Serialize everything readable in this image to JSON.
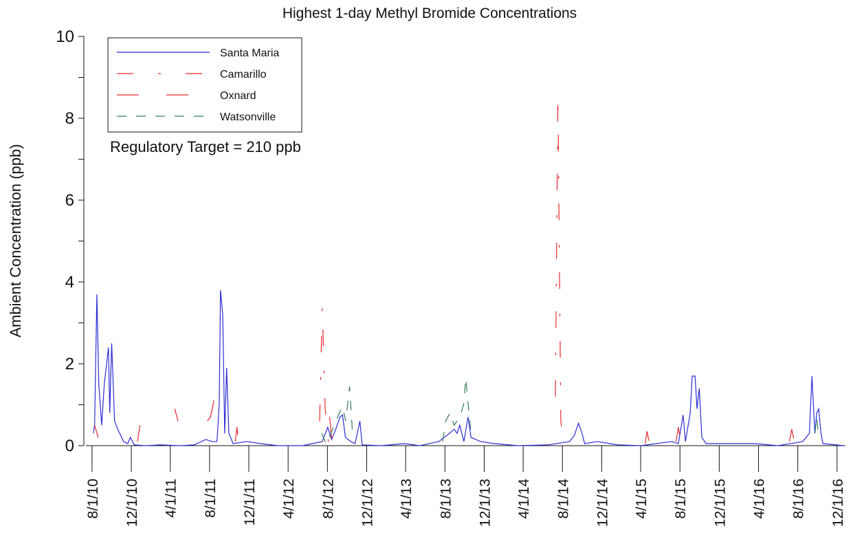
{
  "chart_data": {
    "type": "line",
    "title": "Highest 1-day Methyl Bromide Concentrations",
    "y_label": "Ambient Concentration (ppb)",
    "annotation": "Regulatory Target = 210 ppb",
    "xlim": [
      "7/13/10",
      "12/27/16"
    ],
    "xticks": [
      "8/1/10",
      "12/1/10",
      "4/1/11",
      "8/1/11",
      "12/1/11",
      "4/1/12",
      "8/1/12",
      "12/1/12",
      "4/1/13",
      "8/1/13",
      "12/1/13",
      "4/1/14",
      "8/1/14",
      "12/1/14",
      "4/1/15",
      "8/1/15",
      "12/1/15",
      "4/1/16",
      "8/1/16",
      "12/1/16"
    ],
    "ylim": [
      0,
      10
    ],
    "yticks": [
      0,
      2,
      4,
      6,
      8,
      10
    ],
    "yminor_ticks": [
      1,
      3,
      5,
      7,
      9
    ],
    "legend": "upper left",
    "series": [
      {
        "name": "Santa Maria",
        "color": "#2b2bd6",
        "linestyle": "solid",
        "x": [
          "8/5/10",
          "8/9/10",
          "8/16/10",
          "8/22/10",
          "8/31/10",
          "9/8/10",
          "9/21/10",
          "9/25/10",
          "10/1/10",
          "10/10/10",
          "10/20/10",
          "11/7/10",
          "11/20/10",
          "11/28/10",
          "12/10/10",
          "1/15/11",
          "3/1/11",
          "5/1/11",
          "6/15/11",
          "7/20/11",
          "8/10/11",
          "8/24/11",
          "8/31/11",
          "9/4/11",
          "9/11/11",
          "9/17/11",
          "9/23/11",
          "9/30/11",
          "10/13/11",
          "11/25/11",
          "1/6/12",
          "3/1/12",
          "5/15/12",
          "7/16/12",
          "8/2/12",
          "8/14/12",
          "8/27/12",
          "9/9/12",
          "9/17/12",
          "9/26/12",
          "10/13/12",
          "10/26/12",
          "11/10/12",
          "11/17/12",
          "1/15/13",
          "3/28/13",
          "5/15/13",
          "7/13/13",
          "8/15/13",
          "8/30/13",
          "9/8/13",
          "9/16/13",
          "9/29/13",
          "10/12/13",
          "10/21/13",
          "11/20/13",
          "1/1/14",
          "3/15/14",
          "6/18/14",
          "8/23/14",
          "9/7/14",
          "9/20/14",
          "10/1/14",
          "10/9/14",
          "11/17/14",
          "1/20/15",
          "4/1/15",
          "7/6/15",
          "7/27/15",
          "8/11/15",
          "8/18/15",
          "9/2/15",
          "9/8/15",
          "9/17/15",
          "9/23/15",
          "9/30/15",
          "10/8/15",
          "10/21/15",
          "12/24/15",
          "3/18/16",
          "6/1/16",
          "8/16/16",
          "9/6/16",
          "9/14/16",
          "9/23/16",
          "9/29/16",
          "10/5/16",
          "10/12/16",
          "10/18/16",
          "12/21/16"
        ],
        "values": [
          0.3,
          0.5,
          3.7,
          1.5,
          0.5,
          1.5,
          2.4,
          0.8,
          2.5,
          0.6,
          0.4,
          0.1,
          0.05,
          0.2,
          0.02,
          0,
          0.02,
          0,
          0.02,
          0.15,
          0.1,
          0.1,
          1,
          3.8,
          3.2,
          0.3,
          1.9,
          0.3,
          0.05,
          0.1,
          0.05,
          0,
          0,
          0.1,
          0.45,
          0.15,
          0.4,
          0.7,
          0.75,
          0.2,
          0.1,
          0.05,
          0.6,
          0.02,
          0,
          0.05,
          0,
          0.1,
          0.3,
          0.4,
          0.3,
          0.5,
          0.1,
          0.7,
          0.2,
          0.1,
          0.05,
          0,
          0.02,
          0.1,
          0.25,
          0.55,
          0.3,
          0.05,
          0.1,
          0.02,
          0,
          0.1,
          0.05,
          0.75,
          0.1,
          0.8,
          1.7,
          1.7,
          0.9,
          1.4,
          0.2,
          0.05,
          0.05,
          0.05,
          0,
          0.1,
          0.3,
          1.7,
          0.3,
          0.8,
          0.9,
          0.3,
          0.05,
          0
        ]
      },
      {
        "name": "Camarillo",
        "color": "#e8262b",
        "linestyle": "dashdot",
        "x": [
          "7/8/12",
          "7/16/12",
          "7/25/12",
          "8/4/12",
          "1/1/14",
          "7/10/14",
          "7/18/14",
          "7/27/14",
          "8/4/14"
        ],
        "values": [
          0.6,
          3.4,
          0.9,
          0.1,
          null,
          1.2,
          8.6,
          0.6,
          0.1
        ]
      },
      {
        "name": "Oxnard",
        "color": "#e8262b",
        "linestyle": "longdash",
        "x": [
          "8/9/10",
          "8/20/10",
          "9/15/10",
          "12/20/10",
          "12/28/10",
          "1/5/11",
          "2/28/11",
          "3/5/11",
          "4/15/11",
          "4/25/11",
          "5/10/11",
          "7/25/11",
          "8/4/11",
          "8/21/11",
          "9/1/11",
          "10/20/11",
          "10/25/11",
          "10/30/11",
          "11/15/11",
          "8/8/12",
          "8/15/12",
          "9/1/12",
          "4/15/15",
          "4/21/15",
          "4/28/15",
          "5/10/15",
          "7/20/15",
          "7/27/15",
          "8/3/15",
          "8/20/15",
          "7/6/16",
          "7/13/16",
          "7/20/16",
          "7/30/16"
        ],
        "values": [
          0.5,
          0.2,
          null,
          0.1,
          0.5,
          null,
          0.35,
          null,
          0.9,
          0.6,
          null,
          0.6,
          0.7,
          1.35,
          null,
          0.1,
          0.45,
          0.1,
          null,
          0.7,
          0.1,
          null,
          0.05,
          0.35,
          0.05,
          null,
          0.1,
          0.45,
          0.1,
          null,
          0.1,
          0.4,
          0.15,
          0.1
        ]
      },
      {
        "name": "Watsonville",
        "color": "#2e7a5a",
        "linestyle": "dash",
        "x": [
          "7/14/12",
          "7/28/12",
          "8/23/12",
          "9/7/12",
          "9/17/12",
          "9/27/12",
          "10/9/12",
          "10/18/12",
          "11/1/12",
          "7/25/13",
          "8/3/13",
          "8/17/13",
          "8/30/13",
          "9/16/13",
          "9/28/13",
          "10/5/13",
          "10/11/13",
          "10/20/13",
          "11/1/13",
          "9/23/16",
          "9/29/16",
          "10/5/16"
        ],
        "values": [
          0.3,
          0.05,
          0.5,
          0.8,
          0.95,
          0.6,
          1.45,
          0.3,
          null,
          0.1,
          0.6,
          0.8,
          0.5,
          0.7,
          1.0,
          1.65,
          1.1,
          0.4,
          null,
          0.3,
          0.7,
          0.2
        ]
      }
    ]
  }
}
